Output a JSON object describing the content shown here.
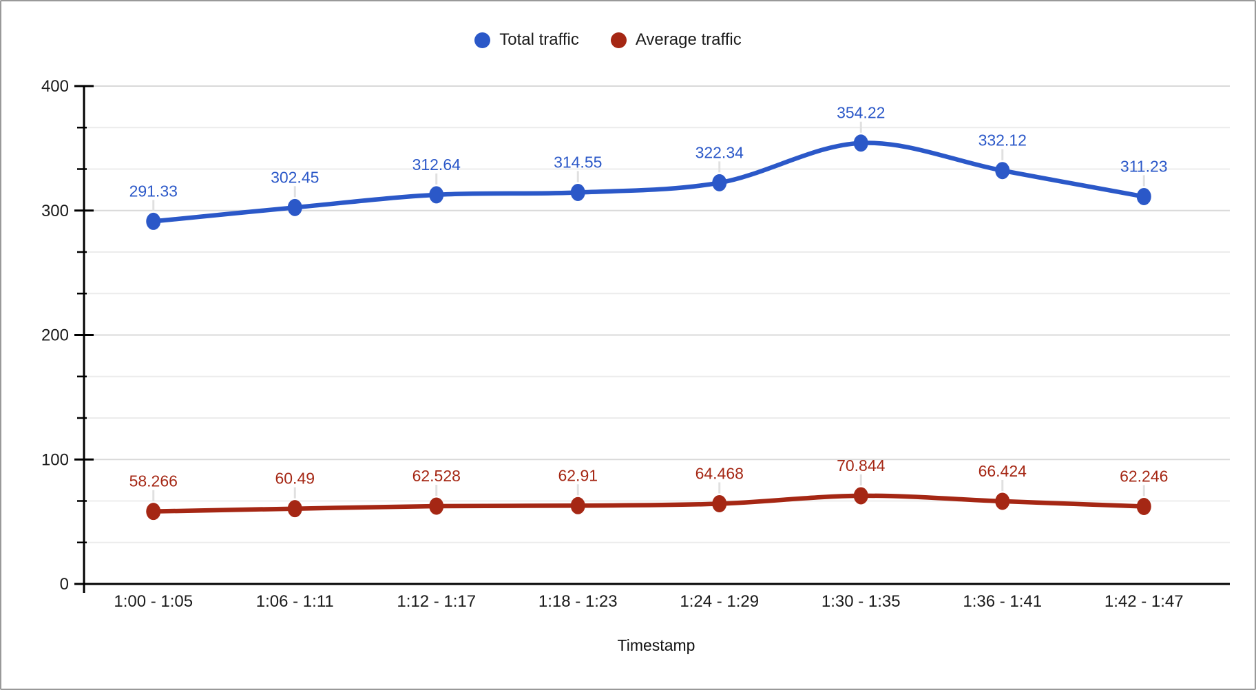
{
  "legend": {
    "items": [
      {
        "label": "Total traffic",
        "color": "#2b58c8"
      },
      {
        "label": "Average traffic",
        "color": "#a52714"
      }
    ]
  },
  "chart_data": {
    "type": "line",
    "smooth": true,
    "grid": true,
    "legend_position": "top",
    "title": "",
    "xlabel": "Timestamp",
    "ylabel": "",
    "ylim": [
      0,
      400
    ],
    "y_major_ticks": [
      0,
      100,
      200,
      300,
      400
    ],
    "y_tick_labels": [
      "0",
      "100",
      "200",
      "300",
      "400"
    ],
    "y_minor_divisions": 3,
    "categories": [
      "1:00 - 1:05",
      "1:06 - 1:11",
      "1:12 - 1:17",
      "1:18 - 1:23",
      "1:24 - 1:29",
      "1:30 - 1:35",
      "1:36 - 1:41",
      "1:42 - 1:47"
    ],
    "series": [
      {
        "name": "Total traffic",
        "color": "#2b58c8",
        "values": [
          291.33,
          302.45,
          312.64,
          314.55,
          322.34,
          354.22,
          332.12,
          311.23
        ],
        "labels": [
          "291.33",
          "302.45",
          "312.64",
          "314.55",
          "322.34",
          "354.22",
          "332.12",
          "311.23"
        ]
      },
      {
        "name": "Average traffic",
        "color": "#a52714",
        "values": [
          58.266,
          60.49,
          62.528,
          62.91,
          64.468,
          70.844,
          66.424,
          62.246
        ],
        "labels": [
          "58.266",
          "60.49",
          "62.528",
          "62.91",
          "64.468",
          "70.844",
          "66.424",
          "62.246"
        ]
      }
    ]
  },
  "colors": {
    "grid_major": "#d9d9d9",
    "grid_minor": "#ececec",
    "axis": "#000000",
    "tick_text": "#1c1c1c",
    "label_stem": "#e0e0e0",
    "frame_border": "#999999",
    "background": "#ffffff"
  }
}
